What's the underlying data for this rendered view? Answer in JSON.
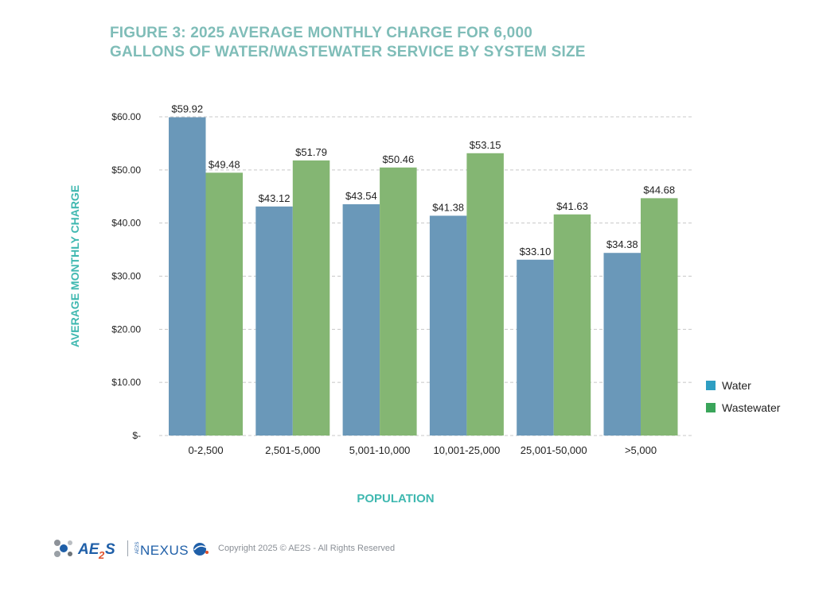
{
  "header": {
    "title_line1": "FIGURE 3: 2025 AVERAGE MONTHLY CHARGE FOR 6,000",
    "title_line2": "GALLONS OF WATER/WASTEWATER SERVICE BY SYSTEM SIZE"
  },
  "footer": {
    "logo_ae2s_text": "AE2S",
    "logo_nexus_text": "NEXUS",
    "copyright": "Copyright 2025 © AE2S - All Rights Reserved"
  },
  "colors": {
    "water": "#6a98b9",
    "water_legend": "#2e9ec2",
    "wastewater": "#84b673",
    "wastewater_legend": "#3aa55a",
    "grid": "#c8c8c8",
    "title": "#7fbdb8",
    "axis_title": "#3fb8b0"
  },
  "chart_data": {
    "type": "bar",
    "title": "FIGURE 3: 2025 AVERAGE MONTHLY CHARGE FOR 6,000 GALLONS OF WATER/WASTEWATER SERVICE BY SYSTEM SIZE",
    "xlabel": "POPULATION",
    "ylabel": "AVERAGE MONTHLY CHARGE",
    "categories": [
      "0-2,500",
      "2,501-5,000",
      "5,001-10,000",
      "10,001-25,000",
      "25,001-50,000",
      ">5,000"
    ],
    "series": [
      {
        "name": "Water",
        "values": [
          59.92,
          43.12,
          43.54,
          41.38,
          33.1,
          34.38
        ],
        "labels": [
          "$59.92",
          "$43.12",
          "$43.54",
          "$41.38",
          "$33.10",
          "$34.38"
        ]
      },
      {
        "name": "Wastewater",
        "values": [
          49.48,
          51.79,
          50.46,
          53.15,
          41.63,
          44.68
        ],
        "labels": [
          "$49.48",
          "$51.79",
          "$50.46",
          "$53.15",
          "$41.63",
          "$44.68"
        ]
      }
    ],
    "ylim": [
      0,
      60
    ],
    "yticks": [
      0,
      10,
      20,
      30,
      40,
      50,
      60
    ],
    "ytick_labels": [
      "$-",
      "$10.00",
      "$20.00",
      "$30.00",
      "$40.00",
      "$50.00",
      "$60.00"
    ],
    "grid": true,
    "legend_position": "right"
  }
}
